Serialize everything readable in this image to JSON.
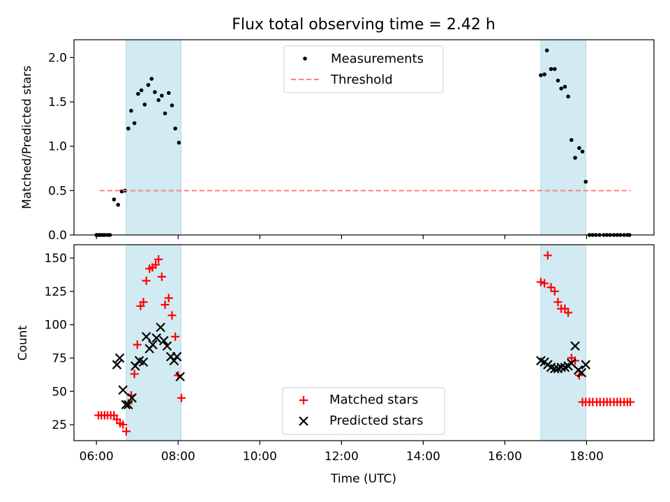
{
  "chart_data": {
    "title": "Flux total observing time = 2.42 h",
    "xlabel": "Time (UTC)",
    "x_ticks": [
      "06:00",
      "08:00",
      "10:00",
      "12:00",
      "14:00",
      "16:00",
      "18:00"
    ],
    "x_ticks_hours": [
      6,
      8,
      10,
      12,
      14,
      16,
      18
    ],
    "x_range_hours": [
      5.45,
      19.65
    ],
    "shaded_intervals_hours": [
      [
        6.73,
        8.07
      ],
      [
        16.88,
        17.98
      ]
    ],
    "colors": {
      "shade": "#add8e6",
      "measurement": "#000000",
      "threshold": "#ff7f7f",
      "matched": "#ff0000",
      "predicted": "#000000"
    },
    "panels": [
      {
        "type": "scatter",
        "ylabel": "Matched/Predicted stars",
        "ylim": [
          0,
          2.2
        ],
        "y_ticks": [
          0.0,
          0.5,
          1.0,
          1.5,
          2.0
        ],
        "y_tick_labels": [
          "0.0",
          "0.5",
          "1.0",
          "1.5",
          "2.0"
        ],
        "legend_position": "top-center",
        "series": [
          {
            "name": "Measurements",
            "marker": "dot",
            "x_hours": [
              6.0,
              6.05,
              6.1,
              6.15,
              6.2,
              6.27,
              6.33,
              6.43,
              6.53,
              6.62,
              6.7,
              6.78,
              6.85,
              6.93,
              7.02,
              7.1,
              7.18,
              7.27,
              7.35,
              7.43,
              7.52,
              7.6,
              7.68,
              7.77,
              7.85,
              7.93,
              8.02,
              16.88,
              16.97,
              17.03,
              17.13,
              17.22,
              17.3,
              17.38,
              17.47,
              17.55,
              17.63,
              17.72,
              17.82,
              17.9,
              17.98,
              18.07,
              18.15,
              18.23,
              18.32,
              18.42,
              18.5,
              18.58,
              18.67,
              18.75,
              18.83,
              18.92,
              19.0,
              19.05
            ],
            "y": [
              0,
              0,
              0,
              0,
              0,
              0,
              0,
              0.4,
              0.34,
              0.49,
              0.5,
              1.2,
              1.4,
              1.26,
              1.59,
              1.63,
              1.47,
              1.69,
              1.76,
              1.61,
              1.52,
              1.57,
              1.37,
              1.6,
              1.46,
              1.2,
              1.04,
              1.8,
              1.81,
              2.08,
              1.87,
              1.87,
              1.74,
              1.65,
              1.67,
              1.56,
              1.07,
              0.87,
              0.98,
              0.94,
              0.6,
              0,
              0,
              0,
              0,
              0,
              0,
              0,
              0,
              0,
              0,
              0,
              0,
              0
            ]
          },
          {
            "name": "Threshold",
            "style": "dashed",
            "x_hours": [
              6.08,
              19.08
            ],
            "y": [
              0.5,
              0.5
            ]
          }
        ]
      },
      {
        "type": "scatter",
        "ylabel": "Count",
        "ylim": [
          13,
          160
        ],
        "y_ticks": [
          25,
          50,
          75,
          100,
          125,
          150
        ],
        "y_tick_labels": [
          "25",
          "50",
          "75",
          "100",
          "125",
          "150"
        ],
        "legend_position": "bottom-center",
        "series": [
          {
            "name": "Matched stars",
            "marker": "plus",
            "x_hours": [
              6.05,
              6.12,
              6.2,
              6.27,
              6.35,
              6.43,
              6.5,
              6.58,
              6.65,
              6.73,
              6.78,
              6.85,
              6.93,
              7.0,
              7.08,
              7.15,
              7.22,
              7.3,
              7.37,
              7.45,
              7.52,
              7.6,
              7.68,
              7.77,
              7.85,
              7.93,
              8.0,
              8.08,
              16.88,
              16.97,
              17.05,
              17.13,
              17.22,
              17.3,
              17.38,
              17.47,
              17.55,
              17.63,
              17.72,
              17.82,
              17.9,
              17.98,
              18.07,
              18.15,
              18.25,
              18.33,
              18.42,
              18.5,
              18.58,
              18.67,
              18.75,
              18.83,
              18.92,
              19.0,
              19.07
            ],
            "y": [
              32,
              32,
              32,
              32,
              32,
              32,
              29,
              26,
              25,
              20,
              41,
              47,
              63,
              85,
              114,
              117,
              133,
              142,
              143,
              145,
              149,
              136,
              115,
              120,
              107,
              91,
              62,
              45,
              132,
              131,
              152,
              128,
              125,
              117,
              112,
              112,
              109,
              75,
              73,
              62,
              42,
              42,
              42,
              42,
              42,
              42,
              42,
              42,
              42,
              42,
              42,
              42,
              42,
              42,
              42
            ]
          },
          {
            "name": "Predicted stars",
            "marker": "x",
            "x_hours": [
              6.5,
              6.57,
              6.65,
              6.72,
              6.78,
              6.87,
              6.95,
              7.05,
              7.15,
              7.22,
              7.3,
              7.38,
              7.47,
              7.57,
              7.65,
              7.73,
              7.82,
              7.9,
              7.97,
              8.05,
              16.88,
              16.97,
              17.05,
              17.13,
              17.22,
              17.3,
              17.38,
              17.47,
              17.55,
              17.63,
              17.72,
              17.8,
              17.88,
              17.98
            ],
            "y": [
              70,
              75,
              51,
              40,
              40,
              45,
              69,
              73,
              72,
              91,
              82,
              85,
              90,
              98,
              88,
              84,
              76,
              73,
              76,
              61,
              73,
              72,
              70,
              68,
              67,
              67,
              68,
              68,
              69,
              71,
              84,
              66,
              64,
              70
            ]
          }
        ]
      }
    ]
  }
}
